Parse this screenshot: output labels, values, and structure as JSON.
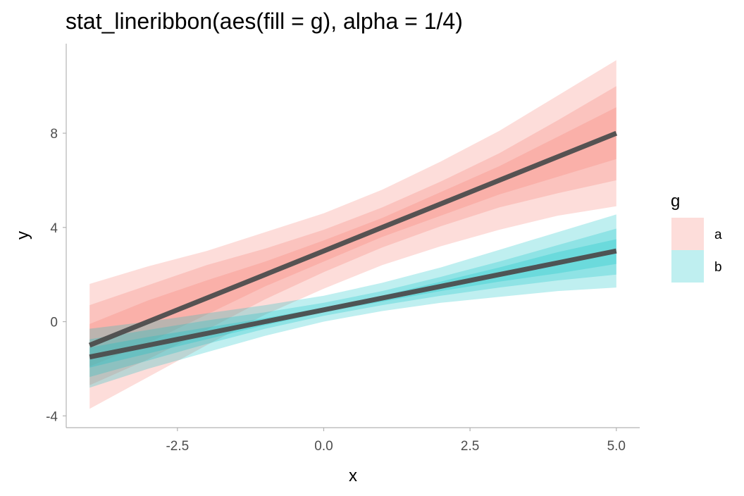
{
  "chart_data": {
    "type": "line",
    "title": "stat_lineribbon(aes(fill = g), alpha = 1/4)",
    "xlabel": "x",
    "ylabel": "y",
    "xlim": [
      -4.4,
      5.4
    ],
    "ylim": [
      -4.5,
      11.8
    ],
    "x_ticks": [
      -2.5,
      0.0,
      2.5,
      5.0
    ],
    "x_tick_labels": [
      "-2.5",
      "0.0",
      "2.5",
      "5.0"
    ],
    "y_ticks": [
      -4,
      0,
      4,
      8
    ],
    "y_tick_labels": [
      "-4",
      "0",
      "4",
      "8"
    ],
    "grid": false,
    "legend": {
      "title": "g",
      "position": "right"
    },
    "ribbon_alpha": 0.25,
    "line_color": "#4d4d4d",
    "x": [
      -4,
      -3,
      -2,
      -1,
      0,
      1,
      2,
      3,
      4,
      5
    ],
    "series": [
      {
        "name": "a",
        "color": "#F8766D",
        "median": [
          -1.0,
          0.0,
          1.0,
          2.0,
          3.0,
          4.0,
          5.0,
          6.0,
          7.0,
          8.0
        ],
        "bands": [
          {
            "lower": [
              -3.7,
              -2.35,
              -1.0,
              0.3,
              1.4,
              2.4,
              3.2,
              3.9,
              4.5,
              4.9
            ],
            "upper": [
              1.6,
              2.35,
              3.0,
              3.8,
              4.6,
              5.6,
              6.8,
              8.1,
              9.6,
              11.1
            ]
          },
          {
            "lower": [
              -2.7,
              -1.6,
              -0.35,
              0.95,
              2.1,
              3.15,
              4.05,
              4.85,
              5.45,
              6.0
            ],
            "upper": [
              0.7,
              1.55,
              2.4,
              3.1,
              3.9,
              4.85,
              5.95,
              7.15,
              8.55,
              10.0
            ]
          },
          {
            "lower": [
              -1.9,
              -0.9,
              0.3,
              1.5,
              2.55,
              3.6,
              4.5,
              5.4,
              6.15,
              6.9
            ],
            "upper": [
              -0.1,
              0.9,
              1.75,
              2.55,
              3.45,
              4.4,
              5.5,
              6.6,
              7.85,
              9.1
            ]
          }
        ]
      },
      {
        "name": "b",
        "color": "#00BFC4",
        "median": [
          -1.5,
          -1.0,
          -0.5,
          0.0,
          0.5,
          1.0,
          1.5,
          2.0,
          2.5,
          3.0
        ],
        "bands": [
          {
            "lower": [
              -2.8,
              -2.0,
              -1.3,
              -0.6,
              0.0,
              0.45,
              0.8,
              1.05,
              1.3,
              1.45
            ],
            "upper": [
              -0.3,
              0.0,
              0.35,
              0.7,
              1.1,
              1.65,
              2.3,
              3.05,
              3.8,
              4.55
            ]
          },
          {
            "lower": [
              -2.35,
              -1.65,
              -0.95,
              -0.3,
              0.25,
              0.7,
              1.1,
              1.45,
              1.75,
              2.0
            ],
            "upper": [
              -0.75,
              -0.35,
              0.05,
              0.4,
              0.8,
              1.3,
              1.9,
              2.55,
              3.25,
              3.95
            ]
          },
          {
            "lower": [
              -1.95,
              -1.35,
              -0.75,
              -0.15,
              0.4,
              0.85,
              1.3,
              1.7,
              2.05,
              2.45
            ],
            "upper": [
              -1.1,
              -0.65,
              -0.25,
              0.15,
              0.6,
              1.1,
              1.7,
              2.3,
              2.95,
              3.5
            ]
          }
        ]
      }
    ]
  }
}
